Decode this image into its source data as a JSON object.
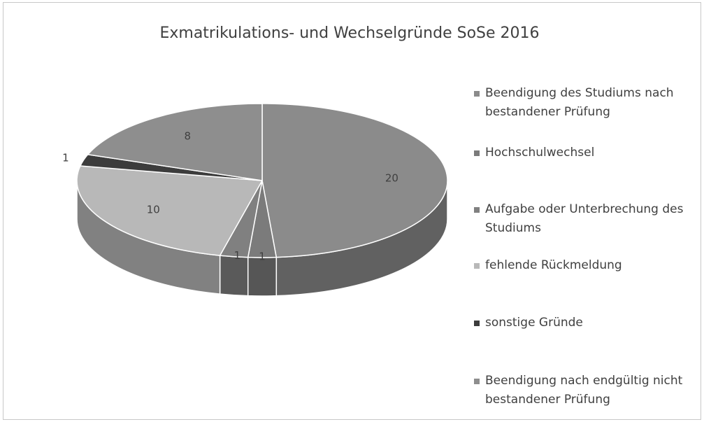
{
  "chart_data": {
    "type": "pie",
    "title": "Exmatrikulations- und Wechselgründe SoSe 2016",
    "categories": [
      "Beendigung des Studiums nach bestandener Prüfung",
      "Hochschulwechsel",
      "Aufgabe oder Unterbrechung des Studiums",
      "fehlende Rückmeldung",
      "sonstige Gründe",
      "Beendigung nach endgültig nicht bestandener Prüfung"
    ],
    "values": [
      20,
      1,
      1,
      10,
      1,
      8
    ],
    "colors": [
      "#8b8b8b",
      "#7b7b7b",
      "#808080",
      "#b8b8b8",
      "#3c3c3c",
      "#8e8e8e"
    ],
    "legend": "right"
  }
}
